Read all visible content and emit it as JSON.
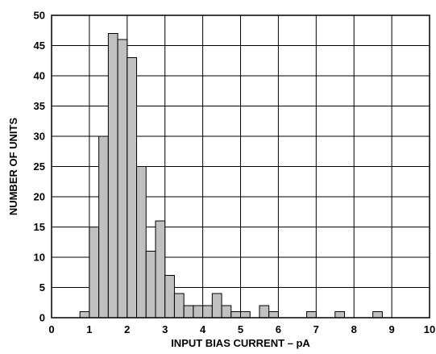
{
  "chart_data": {
    "type": "bar",
    "title": "",
    "xlabel": "INPUT BIAS CURRENT – pA",
    "ylabel": "NUMBER OF UNITS",
    "xlim": [
      0,
      10
    ],
    "ylim": [
      0,
      50
    ],
    "xticks": [
      "0",
      "1",
      "2",
      "3",
      "4",
      "5",
      "6",
      "7",
      "8",
      "9",
      "10"
    ],
    "yticks": [
      "0",
      "5",
      "10",
      "15",
      "20",
      "25",
      "30",
      "35",
      "40",
      "45",
      "50"
    ],
    "grid": true,
    "bin_width": 0.25,
    "bin_starts": [
      0.75,
      1.0,
      1.25,
      1.5,
      1.75,
      2.0,
      2.25,
      2.5,
      2.75,
      3.0,
      3.25,
      3.5,
      3.75,
      4.0,
      4.25,
      4.5,
      4.75,
      5.0,
      5.5,
      5.75,
      6.75,
      7.5,
      8.5
    ],
    "values": [
      1,
      15,
      30,
      47,
      46,
      43,
      25,
      11,
      16,
      7,
      4,
      2,
      2,
      2,
      4,
      2,
      1,
      1,
      2,
      1,
      1,
      1,
      1
    ],
    "bar_color": "#c0c0c0",
    "edge_color": "#000000"
  }
}
